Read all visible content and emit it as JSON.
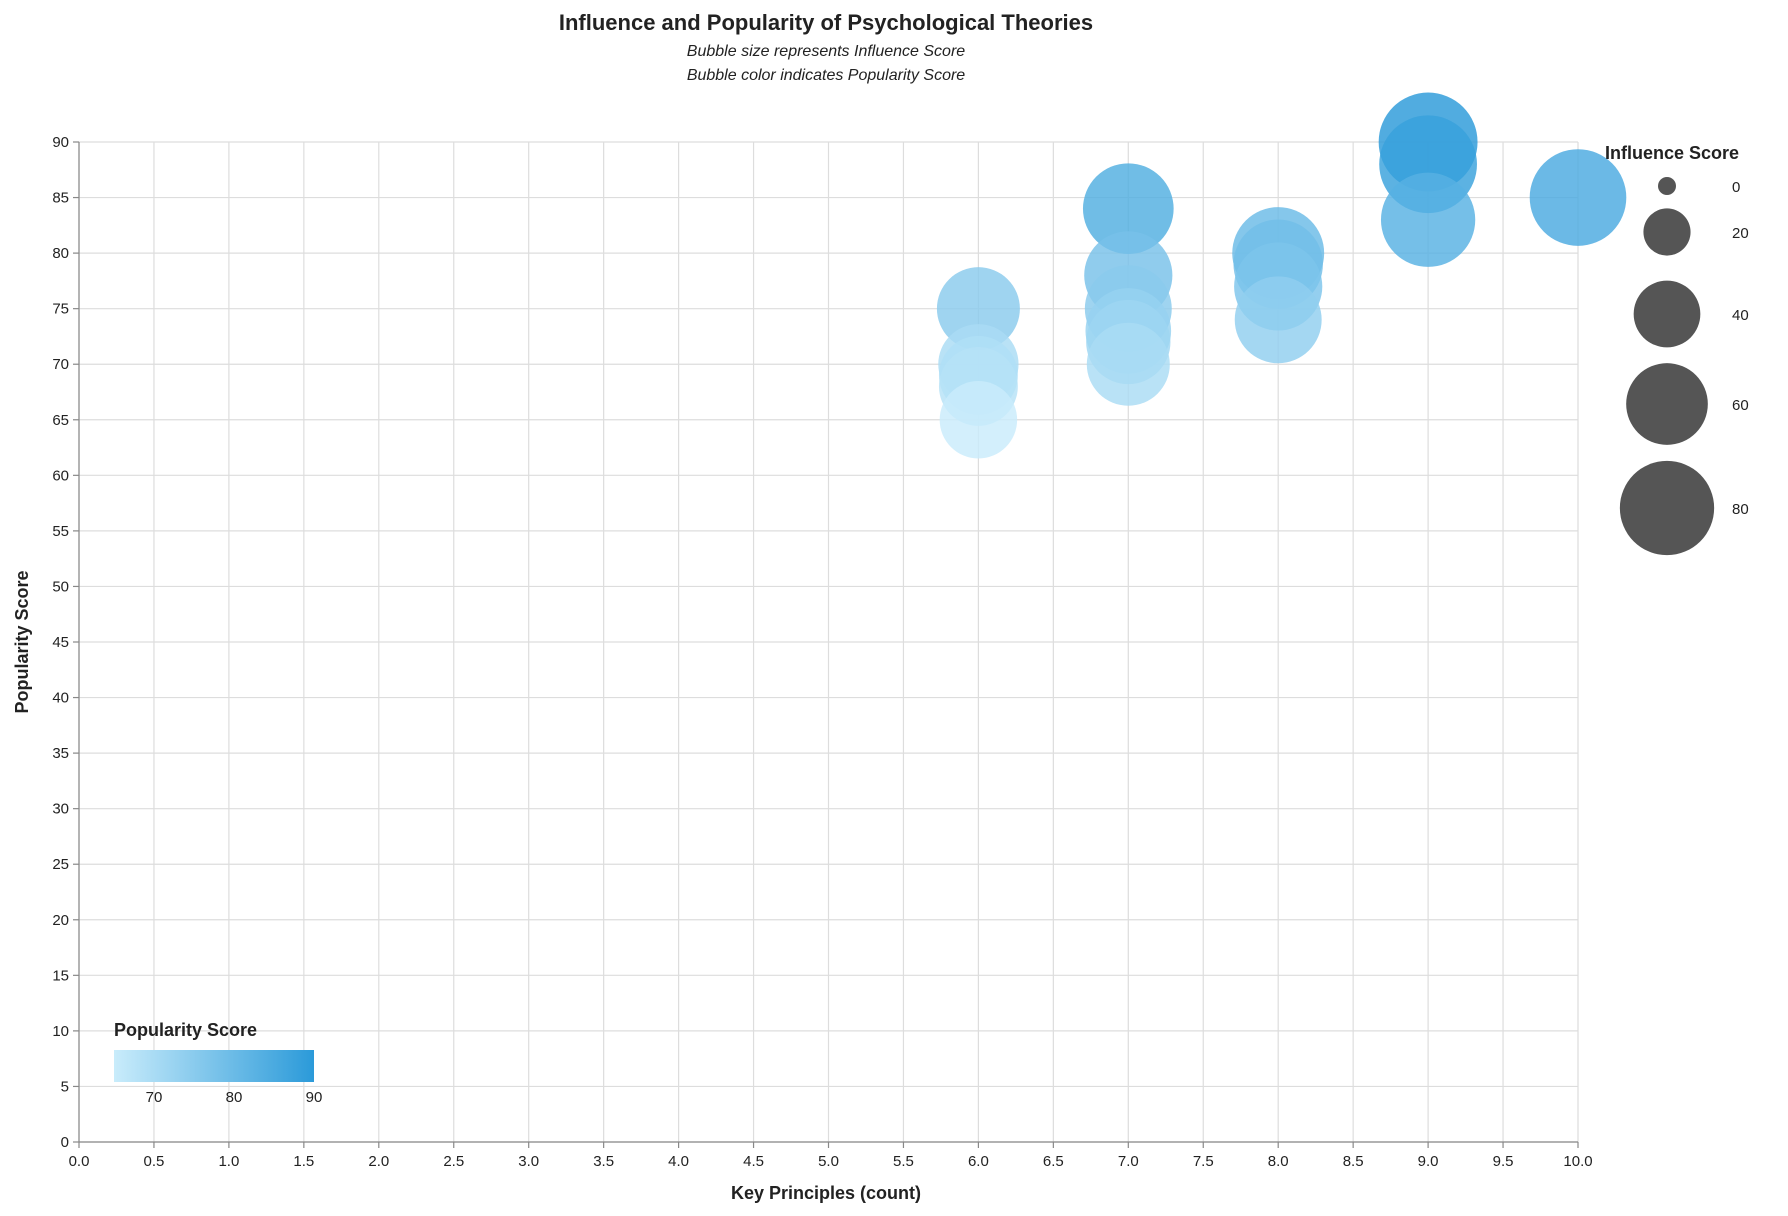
{
  "chart_data": {
    "type": "scatter",
    "title": "Influence and Popularity of Psychological Theories",
    "subtitle": [
      "Bubble size represents Influence Score",
      "Bubble color indicates Popularity Score"
    ],
    "xlabel": "Key Principles (count)",
    "ylabel": "Popularity Score",
    "xlim": [
      0,
      10
    ],
    "ylim": [
      0,
      90
    ],
    "x_ticks": [
      "0.0",
      "0.5",
      "1.0",
      "1.5",
      "2.0",
      "2.5",
      "3.0",
      "3.5",
      "4.0",
      "4.5",
      "5.0",
      "5.5",
      "6.0",
      "6.5",
      "7.0",
      "7.5",
      "8.0",
      "8.5",
      "9.0",
      "9.5",
      "10.0"
    ],
    "y_ticks": [
      "0",
      "5",
      "10",
      "15",
      "20",
      "25",
      "30",
      "35",
      "40",
      "45",
      "50",
      "55",
      "60",
      "65",
      "70",
      "75",
      "80",
      "85",
      "90"
    ],
    "grid": true,
    "points": [
      {
        "x": 9,
        "y": 90,
        "size": 88
      },
      {
        "x": 9,
        "y": 88,
        "size": 86
      },
      {
        "x": 9,
        "y": 83,
        "size": 80
      },
      {
        "x": 10,
        "y": 85,
        "size": 84
      },
      {
        "x": 7,
        "y": 84,
        "size": 74
      },
      {
        "x": 8,
        "y": 80,
        "size": 76
      },
      {
        "x": 8,
        "y": 79,
        "size": 72
      },
      {
        "x": 8,
        "y": 77,
        "size": 70
      },
      {
        "x": 8,
        "y": 74,
        "size": 68
      },
      {
        "x": 7,
        "y": 78,
        "size": 70
      },
      {
        "x": 7,
        "y": 75,
        "size": 68
      },
      {
        "x": 7,
        "y": 73,
        "size": 66
      },
      {
        "x": 7,
        "y": 72,
        "size": 64
      },
      {
        "x": 7,
        "y": 70,
        "size": 62
      },
      {
        "x": 6,
        "y": 75,
        "size": 62
      },
      {
        "x": 6,
        "y": 70,
        "size": 58
      },
      {
        "x": 6,
        "y": 69,
        "size": 56
      },
      {
        "x": 6,
        "y": 68,
        "size": 56
      },
      {
        "x": 6,
        "y": 65,
        "size": 54
      }
    ],
    "size_legend": {
      "title": "Influence Score",
      "values": [
        0,
        20,
        40,
        60,
        80
      ],
      "labels": [
        "0",
        "20",
        "40",
        "60",
        "80"
      ],
      "max_value": 90,
      "placement": "top-right"
    },
    "color_legend": {
      "title": "Popularity Score",
      "domain": [
        65,
        90
      ],
      "labels": [
        "70",
        "80",
        "90"
      ],
      "label_values": [
        70,
        80,
        90
      ],
      "color_low": "#c9ecfb",
      "color_high": "#2b9ad9",
      "placement": "bottom-left"
    },
    "colors": {
      "grid": "#dddddd",
      "axis": "#888888",
      "text": "#222222",
      "size_legend_fill": "#555555"
    }
  }
}
